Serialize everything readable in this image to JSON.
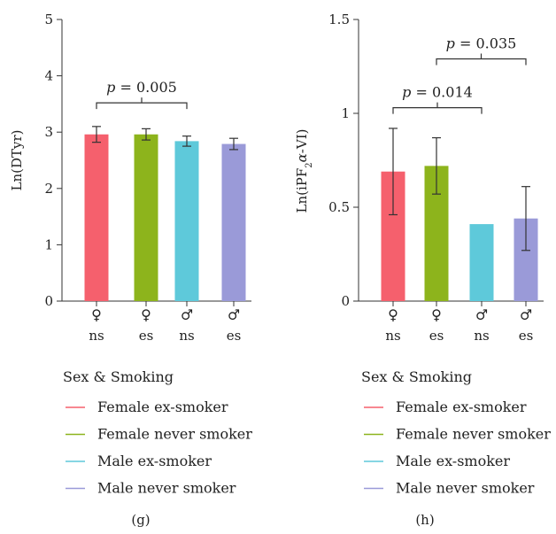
{
  "chart_data": [
    {
      "type": "bar",
      "panel": "(g)",
      "ylabel": "Ln(DTyr)",
      "ylim": [
        0,
        5
      ],
      "yticks": [
        "0",
        "1",
        "2",
        "3",
        "4",
        "5"
      ],
      "categories": [
        {
          "symbol": "♀",
          "label": "ns"
        },
        {
          "symbol": "♀",
          "label": "es"
        },
        {
          "symbol": "♂",
          "label": "ns"
        },
        {
          "symbol": "♂",
          "label": "es"
        }
      ],
      "values": [
        2.96,
        2.96,
        2.84,
        2.79
      ],
      "errors": [
        0.14,
        0.1,
        0.09,
        0.1
      ],
      "colors": [
        "#f5606d",
        "#8db41c",
        "#5ec9da",
        "#9a9ad8"
      ],
      "annotations": [
        {
          "text": "p = 0.005",
          "from": 0,
          "to": 2,
          "y": 3.52
        }
      ],
      "legend_title": "Sex & Smoking",
      "legend": [
        "Female ex-smoker",
        "Female never smoker",
        "Male ex-smoker",
        "Male never smoker"
      ]
    },
    {
      "type": "bar",
      "panel": "(h)",
      "ylabel_parts": {
        "pre": "Ln(iPF",
        "sub": "2",
        "alpha": "α",
        "post": "-VI)"
      },
      "ylim": [
        0,
        1.5
      ],
      "yticks": [
        "0",
        "0.5",
        "1",
        "1.5"
      ],
      "categories": [
        {
          "symbol": "♀",
          "label": "ns"
        },
        {
          "symbol": "♀",
          "label": "es"
        },
        {
          "symbol": "♂",
          "label": "ns"
        },
        {
          "symbol": "♂",
          "label": "es"
        }
      ],
      "values": [
        0.69,
        0.72,
        0.41,
        0.44
      ],
      "errors": [
        0.23,
        0.15,
        0,
        0.17
      ],
      "colors": [
        "#f5606d",
        "#8db41c",
        "#5ec9da",
        "#9a9ad8"
      ],
      "annotations": [
        {
          "text": "p = 0.014",
          "from": 0,
          "to": 2,
          "y": 1.03
        },
        {
          "text": "p = 0.035",
          "from": 1,
          "to": 3,
          "y": 1.29
        }
      ],
      "legend_title": "Sex & Smoking",
      "legend": [
        "Female ex-smoker",
        "Female never smoker",
        "Male ex-smoker",
        "Male never smoker"
      ]
    }
  ]
}
